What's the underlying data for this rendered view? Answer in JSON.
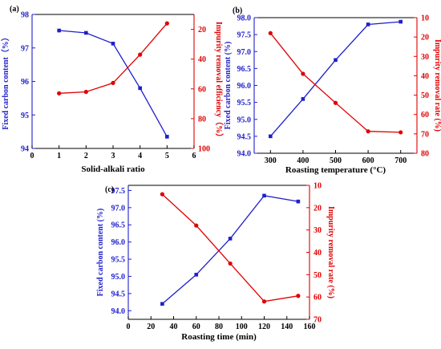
{
  "chart_data": [
    {
      "type": "line",
      "panel_label": "(a)",
      "xlabel": "Solid-alkali ratio",
      "ylabel_left": "Fixed carbon content（%）",
      "ylabel_right": "Impurity removal efficiency（%）",
      "xlim": [
        0,
        6
      ],
      "xticks": [
        0,
        1,
        2,
        3,
        4,
        5,
        6
      ],
      "ylim_left": [
        94,
        98
      ],
      "yticks_left": [
        94,
        95,
        96,
        97,
        98
      ],
      "ylim_right": [
        100,
        10
      ],
      "yticks_right": [
        20,
        40,
        60,
        80,
        100
      ],
      "grid": false,
      "series": [
        {
          "axis": "left",
          "color": "#1f1fcc",
          "marker": "square",
          "x": [
            1,
            2,
            3,
            4,
            5
          ],
          "values": [
            97.52,
            97.45,
            97.13,
            95.8,
            94.35
          ]
        },
        {
          "axis": "right",
          "color": "#e00000",
          "marker": "circle",
          "x": [
            1,
            2,
            3,
            4,
            5
          ],
          "values": [
            63,
            62,
            56,
            37,
            16
          ]
        }
      ]
    },
    {
      "type": "line",
      "panel_label": "(b)",
      "xlabel": "Roasting temperature (°C)",
      "ylabel_left": "Fixed carbon content (%)",
      "ylabel_right": "Impurity removal rate (%)",
      "xlim": [
        250,
        750
      ],
      "xticks": [
        300,
        400,
        500,
        600,
        700
      ],
      "ylim_left": [
        94.0,
        98.0
      ],
      "yticks_left": [
        "94.0",
        "94.5",
        "95.0",
        "95.5",
        "96.0",
        "96.5",
        "97.0",
        "97.5",
        "98.0"
      ],
      "ylim_right": [
        80,
        10
      ],
      "yticks_right": [
        10,
        20,
        30,
        40,
        50,
        60,
        70,
        80
      ],
      "grid": false,
      "series": [
        {
          "axis": "left",
          "color": "#1f1fcc",
          "marker": "square",
          "x": [
            300,
            400,
            500,
            600,
            700
          ],
          "values": [
            94.5,
            95.6,
            96.75,
            97.8,
            97.88
          ]
        },
        {
          "axis": "right",
          "color": "#e00000",
          "marker": "circle",
          "x": [
            300,
            400,
            500,
            600,
            700
          ],
          "values": [
            18,
            39,
            54,
            68.7,
            69.2
          ]
        }
      ]
    },
    {
      "type": "line",
      "panel_label": "(c)",
      "xlabel": "Roasting time (min)",
      "ylabel_left": "Fixed carbon content (%)",
      "ylabel_right": "Impurity removal rate (%)",
      "xlim": [
        0,
        160
      ],
      "xticks": [
        0,
        20,
        40,
        60,
        80,
        100,
        120,
        140,
        160
      ],
      "ylim_left": [
        93.75,
        97.65
      ],
      "yticks_left": [
        "94.0",
        "94.5",
        "95.0",
        "95.5",
        "96.0",
        "96.5",
        "97.0",
        "97.5"
      ],
      "ylim_right": [
        70,
        10
      ],
      "yticks_right": [
        10,
        20,
        30,
        40,
        50,
        60,
        70
      ],
      "grid": false,
      "series": [
        {
          "axis": "left",
          "color": "#1f1fcc",
          "marker": "square",
          "x": [
            30,
            60,
            90,
            120,
            150
          ],
          "values": [
            94.2,
            95.05,
            96.1,
            97.35,
            97.18
          ]
        },
        {
          "axis": "right",
          "color": "#e00000",
          "marker": "circle",
          "x": [
            30,
            60,
            90,
            120,
            150
          ],
          "values": [
            14,
            28,
            45,
            62,
            59.5
          ]
        }
      ]
    }
  ]
}
